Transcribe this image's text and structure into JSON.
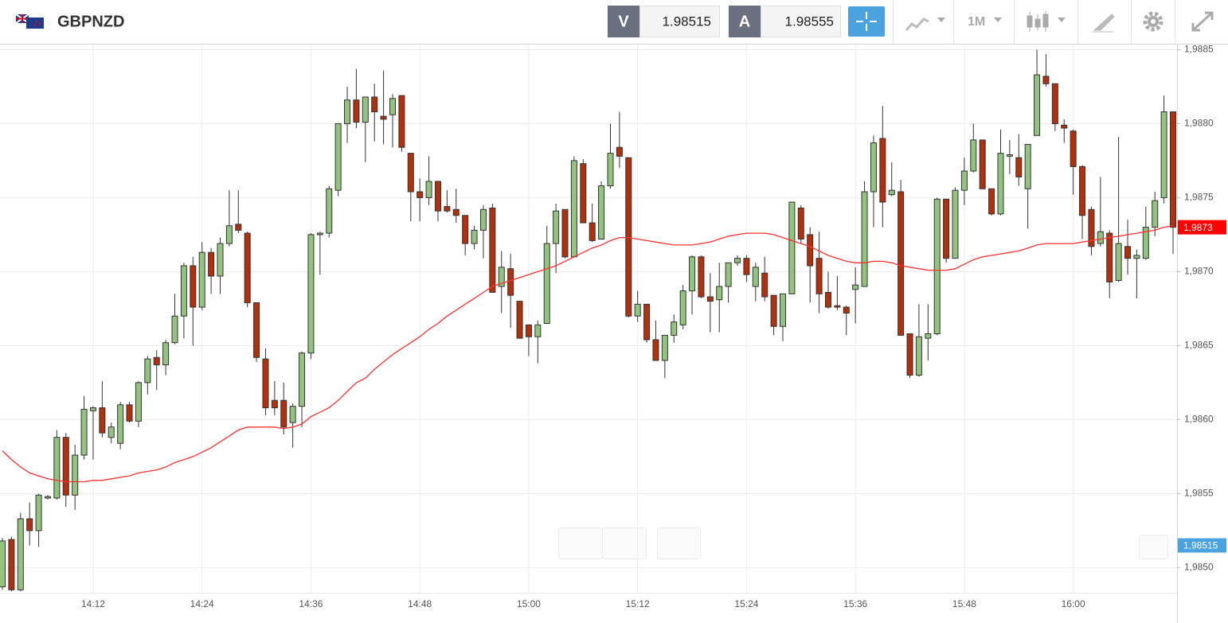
{
  "header": {
    "symbol": "GBPNZD",
    "sell_label": "V",
    "sell": 1.98515,
    "buy_label": "A",
    "buy": 1.98555,
    "timeframe": "1M"
  },
  "chart_data": {
    "type": "candlestick",
    "categories": [
      null,
      null,
      null,
      null,
      null,
      null,
      null,
      null,
      null,
      null,
      "14:12",
      null,
      null,
      null,
      null,
      null,
      null,
      null,
      null,
      null,
      null,
      null,
      "14:24",
      null,
      null,
      null,
      null,
      null,
      null,
      null,
      null,
      null,
      null,
      null,
      "14:36",
      null,
      null,
      null,
      null,
      null,
      null,
      null,
      null,
      null,
      null,
      null,
      "14:48",
      null,
      null,
      null,
      null,
      null,
      null,
      null,
      null,
      null,
      null,
      null,
      "15:00",
      null,
      null,
      null,
      null,
      null,
      null,
      null,
      null,
      null,
      null,
      null,
      "15:12",
      null,
      null,
      null,
      null,
      null,
      null,
      null,
      null,
      null,
      null,
      null,
      "15:24",
      null,
      null,
      null,
      null,
      null,
      null,
      null,
      null,
      null,
      null,
      null,
      "15:36",
      null,
      null,
      null,
      null,
      null,
      null,
      null,
      null,
      null,
      null,
      null,
      "15:48",
      null,
      null,
      null,
      null,
      null,
      null,
      null,
      null,
      null,
      null,
      null,
      "16:00",
      null,
      null,
      null,
      null,
      null,
      null,
      null,
      null,
      null,
      null,
      null
    ],
    "open": [
      1.98487,
      1.98519,
      1.98485,
      1.98533,
      1.98525,
      1.98547,
      1.98547,
      1.98588,
      1.98549,
      1.98576,
      1.98606,
      1.98608,
      1.98588,
      1.98584,
      1.9861,
      1.98599,
      1.98625,
      1.98642,
      1.98637,
      1.98652,
      1.9867,
      1.98704,
      1.98676,
      1.98713,
      1.98697,
      1.98719,
      1.98732,
      1.98726,
      1.98679,
      1.98641,
      1.98613,
      1.98613,
      1.98598,
      1.98609,
      1.98645,
      1.98725,
      1.98726,
      1.98755,
      1.988,
      1.98816,
      1.98801,
      1.98818,
      1.98805,
      1.98806,
      1.98819,
      1.9878,
      1.98754,
      1.9875,
      1.98761,
      1.98744,
      1.98742,
      1.98738,
      1.98719,
      1.98728,
      1.98743,
      1.9869,
      1.98702,
      1.9868,
      1.98664,
      1.98656,
      1.98665,
      1.98719,
      1.98742,
      1.9871,
      1.98773,
      1.98733,
      1.98722,
      1.98758,
      1.98784,
      1.98777,
      1.9867,
      1.98678,
      1.98654,
      1.9864,
      1.98657,
      1.98664,
      1.98687,
      1.9871,
      1.98683,
      1.98681,
      1.9869,
      1.98706,
      1.98709,
      1.9869,
      1.98699,
      1.98684,
      1.98663,
      1.98685,
      1.98743,
      1.98725,
      1.98709,
      1.98686,
      1.98677,
      1.98676,
      1.98688,
      1.9869,
      1.98754,
      1.9879,
      1.98752,
      1.98754,
      1.98658,
      1.9863,
      1.98655,
      1.98658,
      1.98749,
      1.98709,
      1.98755,
      1.98768,
      1.98789,
      1.98756,
      1.98739,
      1.98778,
      1.98777,
      1.98756,
      1.98792,
      1.98832,
      1.98827,
      1.98799,
      1.98795,
      1.98771,
      1.98742,
      1.98719,
      1.98726,
      1.98694,
      1.98717,
      1.98709,
      1.98709,
      1.9873,
      1.9875,
      1.98808
    ],
    "high": [
      1.9852,
      1.98521,
      1.98537,
      1.98544,
      1.9855,
      1.98549,
      1.98593,
      1.98591,
      1.98583,
      1.98616,
      1.98609,
      1.98626,
      1.98598,
      1.98612,
      1.98612,
      1.98626,
      1.98643,
      1.98647,
      1.98654,
      1.98685,
      1.98706,
      1.9871,
      1.9872,
      1.98716,
      1.98723,
      1.98755,
      1.98755,
      1.98727,
      1.98679,
      1.98648,
      1.98626,
      1.98625,
      1.98611,
      1.98646,
      1.98726,
      1.98727,
      1.98758,
      1.988,
      1.98825,
      1.98837,
      1.98818,
      1.98827,
      1.98836,
      1.9882,
      1.98819,
      1.9878,
      1.98763,
      1.98778,
      1.98761,
      1.98755,
      1.98756,
      1.98738,
      1.98731,
      1.98745,
      1.98746,
      1.98714,
      1.98712,
      1.9868,
      1.98664,
      1.98667,
      1.98731,
      1.98746,
      1.98742,
      1.98778,
      1.98776,
      1.98746,
      1.98761,
      1.988,
      1.98808,
      1.98777,
      1.98687,
      1.98678,
      1.98667,
      1.98657,
      1.98671,
      1.98691,
      1.98711,
      1.98711,
      1.98699,
      1.98706,
      1.98706,
      1.98711,
      1.98711,
      1.98706,
      1.9871,
      1.98684,
      1.98685,
      1.98747,
      1.98745,
      1.9873,
      1.98727,
      1.987,
      1.98697,
      1.98677,
      1.98703,
      1.98761,
      1.98792,
      1.98812,
      1.98774,
      1.98762,
      1.98658,
      1.98678,
      1.98678,
      1.9875,
      1.98749,
      1.98757,
      1.98777,
      1.988,
      1.98789,
      1.98756,
      1.98796,
      1.98789,
      1.98793,
      1.98786,
      1.9885,
      1.98847,
      1.98827,
      1.98803,
      1.98796,
      1.98772,
      1.98744,
      1.98764,
      1.98728,
      1.98791,
      1.98735,
      1.98715,
      1.98744,
      1.98754,
      1.98819,
      1.98808
    ],
    "low": [
      1.98485,
      1.98484,
      1.98484,
      1.98515,
      1.98514,
      1.98546,
      1.98546,
      1.98541,
      1.98539,
      1.98573,
      1.98573,
      1.98588,
      1.98584,
      1.9858,
      1.98598,
      1.98595,
      1.98617,
      1.9862,
      1.9863,
      1.98651,
      1.98655,
      1.9865,
      1.98674,
      1.98685,
      1.98685,
      1.98717,
      1.98726,
      1.98676,
      1.98639,
      1.98603,
      1.98603,
      1.9859,
      1.98581,
      1.98595,
      1.98641,
      1.98698,
      1.98723,
      1.98751,
      1.98787,
      1.98797,
      1.98774,
      1.98788,
      1.98786,
      1.98784,
      1.98781,
      1.98734,
      1.98734,
      1.98745,
      1.98734,
      1.9874,
      1.98733,
      1.98711,
      1.98715,
      1.98709,
      1.98686,
      1.98672,
      1.98662,
      1.98655,
      1.98643,
      1.98638,
      1.98665,
      1.98699,
      1.98709,
      1.9871,
      1.98733,
      1.9872,
      1.98722,
      1.98756,
      1.9877,
      1.98669,
      1.98666,
      1.98652,
      1.9864,
      1.98628,
      1.98652,
      1.98661,
      1.98671,
      1.98682,
      1.98659,
      1.98659,
      1.98679,
      1.98704,
      1.98693,
      1.9868,
      1.9868,
      1.98657,
      1.98653,
      1.98685,
      1.98719,
      1.98679,
      1.98672,
      1.98675,
      1.98674,
      1.98657,
      1.98665,
      1.9869,
      1.9873,
      1.9873,
      1.98751,
      1.98657,
      1.98628,
      1.98629,
      1.9864,
      1.98657,
      1.98706,
      1.98709,
      1.98745,
      1.98767,
      1.98756,
      1.98738,
      1.98738,
      1.98766,
      1.98758,
      1.98729,
      1.98792,
      1.98825,
      1.98795,
      1.98787,
      1.98752,
      1.98722,
      1.98711,
      1.98717,
      1.98682,
      1.98693,
      1.98698,
      1.98682,
      1.98708,
      1.98724,
      1.98746,
      1.98712
    ],
    "close": [
      1.98518,
      1.98485,
      1.98533,
      1.98525,
      1.98549,
      1.98548,
      1.98588,
      1.98549,
      1.98576,
      1.98607,
      1.98608,
      1.98591,
      1.98595,
      1.9861,
      1.98599,
      1.98625,
      1.98641,
      1.98637,
      1.98652,
      1.9867,
      1.98704,
      1.98676,
      1.98713,
      1.98697,
      1.98719,
      1.98731,
      1.98728,
      1.98679,
      1.98642,
      1.98608,
      1.98608,
      1.98595,
      1.98609,
      1.98645,
      1.98725,
      1.98726,
      1.98756,
      1.988,
      1.98816,
      1.98801,
      1.98818,
      1.98808,
      1.98803,
      1.98817,
      1.98784,
      1.98754,
      1.9875,
      1.98761,
      1.98741,
      1.98741,
      1.98738,
      1.98719,
      1.98728,
      1.98742,
      1.98686,
      1.98703,
      1.98684,
      1.98655,
      1.98656,
      1.98664,
      1.98719,
      1.98741,
      1.9871,
      1.98775,
      1.98733,
      1.98721,
      1.98758,
      1.9878,
      1.98778,
      1.9867,
      1.98678,
      1.98654,
      1.9864,
      1.98657,
      1.98666,
      1.98687,
      1.9871,
      1.98683,
      1.9868,
      1.9869,
      1.98706,
      1.98709,
      1.98698,
      1.98703,
      1.98683,
      1.98663,
      1.98685,
      1.98747,
      1.98722,
      1.98704,
      1.98685,
      1.98676,
      1.98676,
      1.98672,
      1.98691,
      1.98754,
      1.98787,
      1.98747,
      1.98755,
      1.98657,
      1.9863,
      1.98656,
      1.98658,
      1.98749,
      1.98709,
      1.98755,
      1.98768,
      1.98789,
      1.98756,
      1.98739,
      1.9878,
      1.98779,
      1.98764,
      1.98786,
      1.98833,
      1.98827,
      1.988,
      1.98797,
      1.98771,
      1.98738,
      1.98717,
      1.98727,
      1.98693,
      1.98719,
      1.98709,
      1.98711,
      1.9873,
      1.98748,
      1.98808,
      1.9873
    ],
    "up_color": "#92c47f",
    "down_color": "#b2300c",
    "ma": {
      "color": "#ff3030",
      "values": [
        1.98579,
        1.98573,
        1.98568,
        1.98564,
        1.98562,
        1.9856,
        1.98559,
        1.98558,
        1.98558,
        1.98558,
        1.98559,
        1.98559,
        1.9856,
        1.98561,
        1.98562,
        1.98564,
        1.98565,
        1.98566,
        1.98568,
        1.98571,
        1.98573,
        1.98575,
        1.98578,
        1.98581,
        1.98585,
        1.98589,
        1.98593,
        1.98595,
        1.98595,
        1.98595,
        1.98595,
        1.98594,
        1.98595,
        1.98597,
        1.98602,
        1.98605,
        1.98608,
        1.98613,
        1.98619,
        1.98625,
        1.98628,
        1.98634,
        1.98639,
        1.98644,
        1.98648,
        1.98652,
        1.98656,
        1.98661,
        1.98665,
        1.9867,
        1.98674,
        1.98678,
        1.98682,
        1.98686,
        1.9869,
        1.98692,
        1.98694,
        1.98696,
        1.98698,
        1.987,
        1.98702,
        1.98704,
        1.98707,
        1.9871,
        1.98713,
        1.98716,
        1.98718,
        1.98721,
        1.98723,
        1.98723,
        1.98722,
        1.98721,
        1.9872,
        1.98719,
        1.98718,
        1.98718,
        1.98718,
        1.98719,
        1.9872,
        1.98722,
        1.98724,
        1.98725,
        1.98726,
        1.98726,
        1.98726,
        1.98725,
        1.98723,
        1.98721,
        1.98719,
        1.98717,
        1.98714,
        1.98711,
        1.98709,
        1.98707,
        1.98706,
        1.98706,
        1.98707,
        1.98707,
        1.98706,
        1.98704,
        1.98703,
        1.98702,
        1.98701,
        1.98701,
        1.98701,
        1.98702,
        1.98705,
        1.98708,
        1.9871,
        1.98711,
        1.98712,
        1.98713,
        1.98714,
        1.98716,
        1.98718,
        1.98719,
        1.98719,
        1.98719,
        1.98719,
        1.9872,
        1.98721,
        1.98722,
        1.98723,
        1.98724,
        1.98725,
        1.98726,
        1.98727,
        1.98728,
        1.9873,
        1.98731
      ]
    },
    "ylim": [
      1.98483,
      1.98854
    ],
    "yticks": [
      {
        "value": 1.985,
        "label": "1,9850"
      },
      {
        "value": 1.9855,
        "label": "1,9855"
      },
      {
        "value": 1.986,
        "label": "1,9860"
      },
      {
        "value": 1.9865,
        "label": "1,9865"
      },
      {
        "value": 1.987,
        "label": "1,9870"
      },
      {
        "value": 1.9875,
        "label": "1,9875"
      },
      {
        "value": 1.988,
        "label": "1,9880"
      },
      {
        "value": 1.9885,
        "label": "1,9885"
      }
    ],
    "last_price": {
      "value": 1.9873,
      "label": "1,9873",
      "color": "#ff0000"
    },
    "bid_price": {
      "value": 1.98515,
      "label": "1,98515",
      "color": "#4aa3df"
    },
    "grid": true
  }
}
